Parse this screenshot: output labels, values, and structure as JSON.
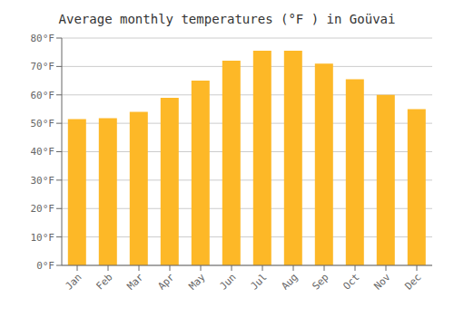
{
  "chart_data": {
    "type": "bar",
    "title": "Average monthly temperatures (°F ) in Goüvai",
    "categories": [
      "Jan",
      "Feb",
      "Mar",
      "Apr",
      "May",
      "Jun",
      "Jul",
      "Aug",
      "Sep",
      "Oct",
      "Nov",
      "Dec"
    ],
    "values": [
      51.5,
      51.8,
      54.0,
      59.0,
      65.0,
      72.0,
      75.5,
      75.5,
      71.0,
      65.5,
      60.0,
      55.0
    ],
    "color": "#FDB827",
    "ylim": [
      0,
      80
    ],
    "yticks": [
      {
        "value": 0,
        "label": "0°F"
      },
      {
        "value": 10,
        "label": "10°F"
      },
      {
        "value": 20,
        "label": "20°F"
      },
      {
        "value": 30,
        "label": "30°F"
      },
      {
        "value": 40,
        "label": "40°F"
      },
      {
        "value": 50,
        "label": "50°F"
      },
      {
        "value": 60,
        "label": "60°F"
      },
      {
        "value": 70,
        "label": "70°F"
      },
      {
        "value": 80,
        "label": "80°F"
      }
    ],
    "grid": true
  }
}
